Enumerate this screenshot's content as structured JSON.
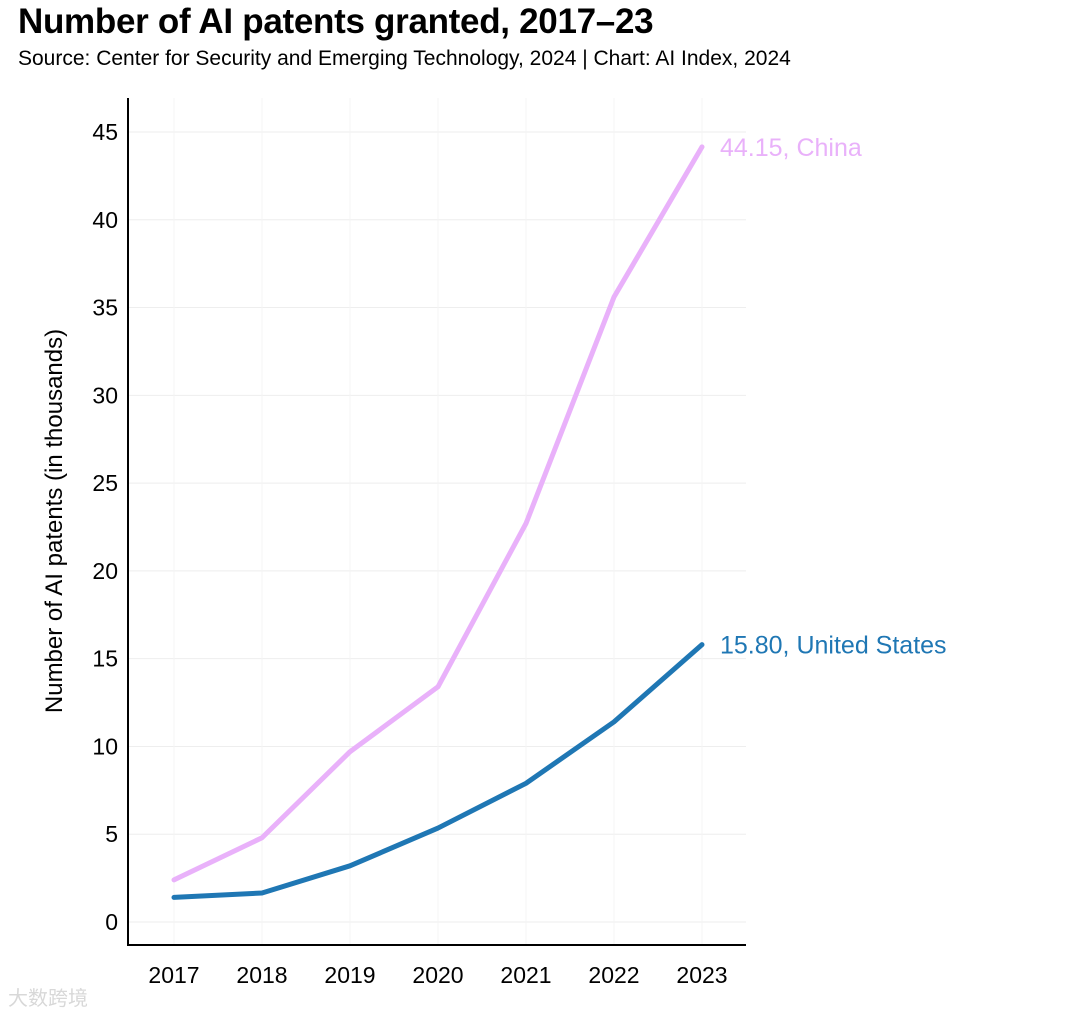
{
  "chart_data": {
    "type": "line",
    "title": "Number of AI patents granted, 2017–23",
    "subtitle": "Source: Center for Security and Emerging Technology, 2024 | Chart: AI Index, 2024",
    "xlabel": "",
    "ylabel": "Number of AI patents (in thousands)",
    "x": [
      "2017",
      "2018",
      "2019",
      "2020",
      "2021",
      "2022",
      "2023"
    ],
    "ylim": [
      0,
      45
    ],
    "yticks": [
      "0",
      "5",
      "10",
      "15",
      "20",
      "25",
      "30",
      "35",
      "40",
      "45"
    ],
    "grid": true,
    "series": [
      {
        "name": "China",
        "color": "#e9b1fa",
        "values": [
          2.4,
          4.8,
          9.7,
          13.4,
          22.7,
          35.6,
          44.15
        ],
        "end_label": "44.15, China"
      },
      {
        "name": "United States",
        "color": "#1f77b4",
        "values": [
          1.4,
          1.65,
          3.2,
          5.35,
          7.9,
          11.4,
          15.8
        ],
        "end_label": "15.80, United States"
      }
    ]
  },
  "watermark": "大数跨境"
}
